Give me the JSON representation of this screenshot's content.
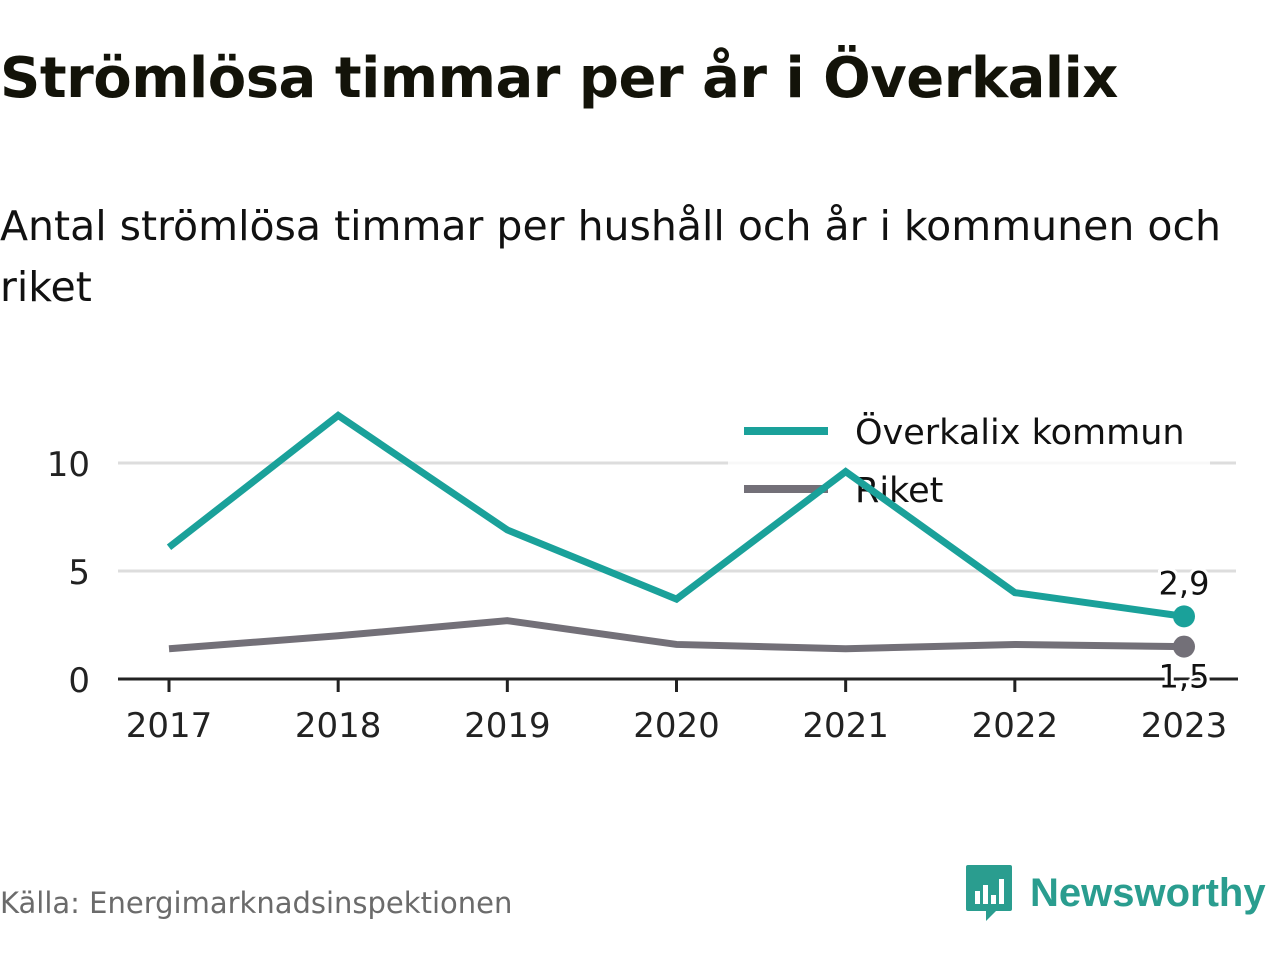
{
  "title": "Strömlösa timmar per år i Överkalix",
  "subtitle": "Antal strömlösa timmar per hushåll och år i kommunen och riket",
  "source": "Källa: Energimarknadsinspektionen",
  "brand": {
    "name": "Newsworthy",
    "icon": "newsworthy-logo-icon"
  },
  "colors": {
    "accent": "#1aa19a",
    "secondary": "#737078",
    "grid": "#dddddd",
    "axis": "#222222"
  },
  "chart_data": {
    "type": "line",
    "x": [
      "2017",
      "2018",
      "2019",
      "2020",
      "2021",
      "2022",
      "2023"
    ],
    "series": [
      {
        "name": "Överkalix kommun",
        "color": "#1aa19a",
        "values": [
          6.1,
          12.2,
          6.9,
          3.7,
          9.6,
          4.0,
          2.9
        ]
      },
      {
        "name": "Riket",
        "color": "#737078",
        "values": [
          1.4,
          2.0,
          2.7,
          1.6,
          1.4,
          1.6,
          1.5
        ]
      }
    ],
    "end_labels": [
      "2,9",
      "1,5"
    ],
    "y_ticks": [
      0,
      5,
      10
    ],
    "y_tick_labels": [
      "0",
      "5",
      "10"
    ],
    "ylim": [
      0,
      13
    ],
    "grid": true,
    "legend_position": "top-right"
  }
}
